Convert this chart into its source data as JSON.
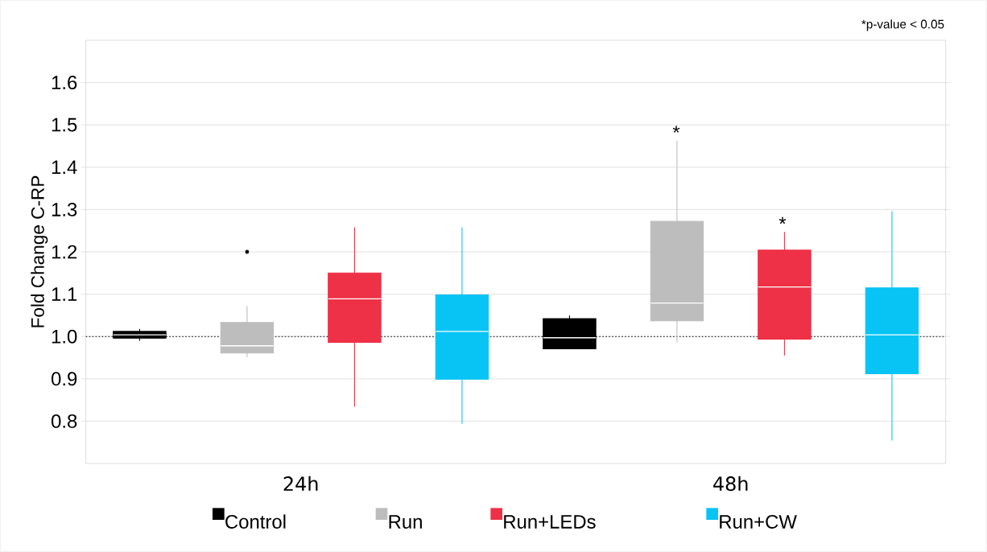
{
  "chart_data": {
    "type": "box",
    "ylabel": "Fold Change C-RP",
    "categories": [
      "24h",
      "48h"
    ],
    "series": [
      {
        "name": "Control",
        "color": "#000000",
        "boxes": [
          {
            "low": 0.99,
            "q1": 0.996,
            "median": 1.004,
            "q3": 1.012,
            "high": 1.018
          },
          {
            "low": 0.97,
            "q1": 0.971,
            "median": 0.997,
            "q3": 1.042,
            "high": 1.05
          }
        ]
      },
      {
        "name": "Run",
        "color": "#bdbdbd",
        "boxes": [
          {
            "low": 0.951,
            "q1": 0.961,
            "median": 0.978,
            "q3": 1.033,
            "high": 1.072,
            "outliers": [
              1.2
            ]
          },
          {
            "low": 0.986,
            "q1": 1.037,
            "median": 1.079,
            "q3": 1.272,
            "high": 1.463
          }
        ]
      },
      {
        "name": "Run+LEDs",
        "color": "#ee3146",
        "boxes": [
          {
            "low": 0.834,
            "q1": 0.986,
            "median": 1.089,
            "q3": 1.15,
            "high": 1.258
          },
          {
            "low": 0.955,
            "q1": 0.994,
            "median": 1.117,
            "q3": 1.204,
            "high": 1.247
          }
        ]
      },
      {
        "name": "Run+CW",
        "color": "#07c4f4",
        "boxes": [
          {
            "low": 0.794,
            "q1": 0.899,
            "median": 1.012,
            "q3": 1.098,
            "high": 1.258
          },
          {
            "low": 0.754,
            "q1": 0.912,
            "median": 1.004,
            "q3": 1.115,
            "high": 1.296
          }
        ]
      }
    ],
    "ylim": [
      0.7,
      1.7
    ],
    "yticks": [
      0.8,
      0.9,
      {
        "value": 1.0,
        "label": "1.0"
      },
      1.1,
      1.2,
      1.3,
      1.4,
      1.5,
      1.6
    ],
    "ref_lines": [
      {
        "axis": "y",
        "value": 1.0,
        "color": "#000000",
        "line_style": "dotted"
      }
    ],
    "annotations": [
      "*p-value < 0.05",
      "*",
      "*"
    ],
    "grid": "y",
    "legend": "bottom"
  }
}
